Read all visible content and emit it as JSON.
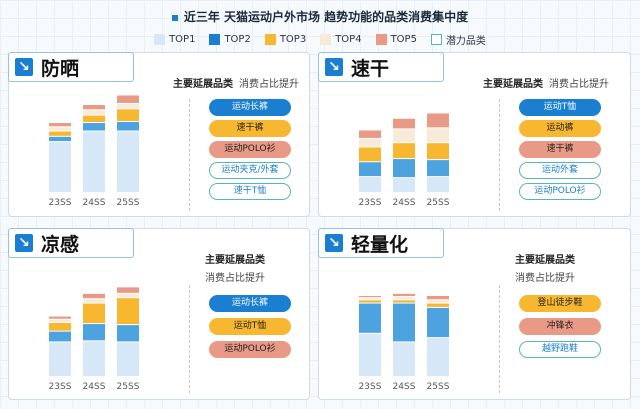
{
  "title": "近三年 天猫运动户外市场 趋势功能的品类消费集中度",
  "legend": [
    {
      "name": "TOP1",
      "color": "#d6e8f7"
    },
    {
      "name": "TOP2",
      "color": "#1a7fd0"
    },
    {
      "name": "TOP3",
      "color": "#f7b731"
    },
    {
      "name": "TOP4",
      "color": "#f8ead8"
    },
    {
      "name": "TOP5",
      "color": "#e99a86"
    },
    {
      "name": "潜力品类",
      "color": "#5ab7b0"
    }
  ],
  "colors": {
    "TOP1": "#d6e8f7",
    "TOP2": "#4da3e0",
    "TOP3": "#f7b731",
    "TOP4": "#f8ead8",
    "TOP5": "#e99a86"
  },
  "arrow_icon": "↘",
  "panels": [
    {
      "title": "防晒",
      "sub_bold": "主要延展品类",
      "sub_thin": "消费占比提升",
      "pills": [
        {
          "label": "运动长裤",
          "style": "c1"
        },
        {
          "label": "速干裤",
          "style": "c2"
        },
        {
          "label": "运动POLO衫",
          "style": "c3"
        },
        {
          "label": "运动夹克/外套",
          "style": "c4"
        },
        {
          "label": "速干T恤",
          "style": "c4"
        }
      ]
    },
    {
      "title": "速干",
      "sub_bold": "主要延展品类",
      "sub_thin": "消费占比提升",
      "pills": [
        {
          "label": "运动T恤",
          "style": "c1"
        },
        {
          "label": "运动裤",
          "style": "c2"
        },
        {
          "label": "速干裤",
          "style": "c3"
        },
        {
          "label": "运动外套",
          "style": "c4"
        },
        {
          "label": "运动POLO衫",
          "style": "c4"
        }
      ]
    },
    {
      "title": "凉感",
      "sub_bold": "主要延展品类",
      "sub_thin": "消费占比提升",
      "pills": [
        {
          "label": "运动长裤",
          "style": "c1"
        },
        {
          "label": "运动T恤",
          "style": "c2"
        },
        {
          "label": "运动POLO衫",
          "style": "c3"
        }
      ]
    },
    {
      "title": "轻量化",
      "sub_bold": "主要延展品类",
      "sub_thin": "消费占比提升",
      "pills": [
        {
          "label": "登山徒步鞋",
          "style": "c2"
        },
        {
          "label": "冲锋衣",
          "style": "c3"
        },
        {
          "label": "越野跑鞋",
          "style": "c4"
        }
      ]
    }
  ],
  "chart_data": [
    {
      "type": "bar",
      "title": "防晒",
      "categories": [
        "23SS",
        "24SS",
        "25SS"
      ],
      "series": [
        {
          "name": "TOP1",
          "values": [
            48,
            58,
            58
          ]
        },
        {
          "name": "TOP2",
          "values": [
            5,
            8,
            9
          ]
        },
        {
          "name": "TOP3",
          "values": [
            5,
            7,
            12
          ]
        },
        {
          "name": "TOP4",
          "values": [
            4,
            5,
            5
          ]
        },
        {
          "name": "TOP5",
          "values": [
            4,
            5,
            8
          ]
        }
      ],
      "ylim": [
        0,
        100
      ]
    },
    {
      "type": "bar",
      "title": "速干",
      "categories": [
        "23SS",
        "24SS",
        "25SS"
      ],
      "series": [
        {
          "name": "TOP1",
          "values": [
            15,
            14,
            15
          ]
        },
        {
          "name": "TOP2",
          "values": [
            14,
            18,
            16
          ]
        },
        {
          "name": "TOP3",
          "values": [
            14,
            15,
            16
          ]
        },
        {
          "name": "TOP4",
          "values": [
            8,
            13,
            14
          ]
        },
        {
          "name": "TOP5",
          "values": [
            8,
            10,
            14
          ]
        }
      ],
      "ylim": [
        0,
        100
      ]
    },
    {
      "type": "bar",
      "title": "凉感",
      "categories": [
        "23SS",
        "24SS",
        "25SS"
      ],
      "series": [
        {
          "name": "TOP1",
          "values": [
            32,
            33,
            32
          ]
        },
        {
          "name": "TOP2",
          "values": [
            10,
            16,
            16
          ]
        },
        {
          "name": "TOP3",
          "values": [
            8,
            19,
            25
          ]
        },
        {
          "name": "TOP4",
          "values": [
            3,
            4,
            4
          ]
        },
        {
          "name": "TOP5",
          "values": [
            3,
            5,
            6
          ]
        }
      ],
      "ylim": [
        0,
        100
      ]
    },
    {
      "type": "bar",
      "title": "轻量化",
      "categories": [
        "23SS",
        "24SS",
        "25SS"
      ],
      "series": [
        {
          "name": "TOP1",
          "values": [
            40,
            32,
            36
          ]
        },
        {
          "name": "TOP2",
          "values": [
            28,
            36,
            28
          ]
        },
        {
          "name": "TOP3",
          "values": [
            3,
            3,
            4
          ]
        },
        {
          "name": "TOP4",
          "values": [
            2,
            3,
            3
          ]
        },
        {
          "name": "TOP5",
          "values": [
            2,
            3,
            4
          ]
        }
      ],
      "ylim": [
        0,
        100
      ]
    }
  ]
}
